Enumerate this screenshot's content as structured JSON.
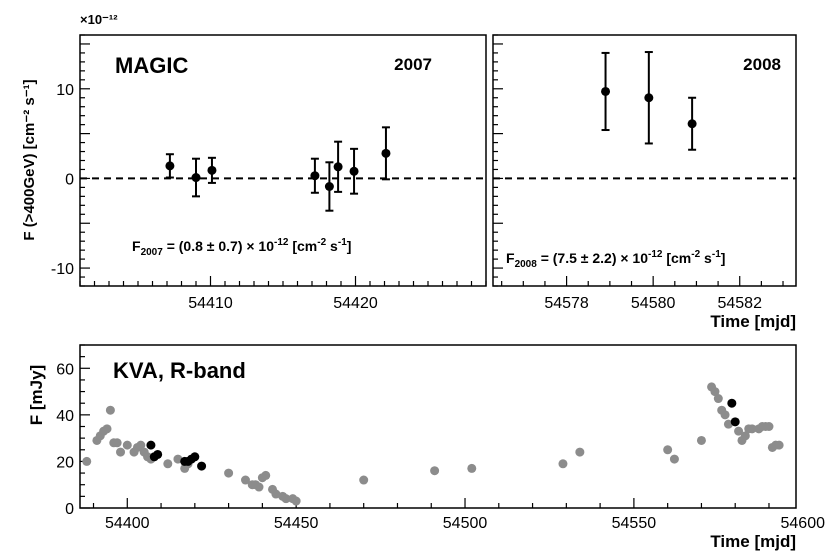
{
  "chart_data": [
    {
      "type": "scatter",
      "panel": "MAGIC 2007",
      "label": "MAGIC",
      "year": "2007",
      "ylabel": "F (>400GeV) [cm⁻² s⁻¹]",
      "y_multiplier": "×10⁻¹²",
      "xlim": [
        54401,
        54429
      ],
      "ylim": [
        -12,
        16
      ],
      "xticks": [
        54410,
        54420
      ],
      "yticks": [
        -10,
        0,
        10
      ],
      "reference_line": 0,
      "fit_prefix": "F",
      "fit_sub": "2007",
      "fit_text": " = (0.8 ± 0.7) × 10",
      "fit_exp": "-12",
      "fit_unit": " [cm",
      "fit_unit_exp1": "-2",
      "fit_unit_mid": " s",
      "fit_unit_exp2": "-1",
      "fit_end": "]",
      "points": [
        {
          "x": 54407.2,
          "y": 1.4,
          "err": 1.3
        },
        {
          "x": 54409.0,
          "y": 0.1,
          "err": 2.1
        },
        {
          "x": 54410.1,
          "y": 0.9,
          "err": 1.4
        },
        {
          "x": 54417.2,
          "y": 0.3,
          "err": 1.9
        },
        {
          "x": 54418.2,
          "y": -0.9,
          "err": 2.7
        },
        {
          "x": 54418.8,
          "y": 1.3,
          "err": 2.8
        },
        {
          "x": 54419.9,
          "y": 0.8,
          "err": 2.5
        },
        {
          "x": 54422.1,
          "y": 2.8,
          "err": 2.9
        }
      ]
    },
    {
      "type": "scatter",
      "panel": "MAGIC 2008",
      "year": "2008",
      "xlabel": "Time [mjd]",
      "xlim": [
        54576.3,
        54583.3
      ],
      "ylim": [
        -12,
        16
      ],
      "xticks": [
        54578,
        54580,
        54582
      ],
      "reference_line": 0,
      "fit_prefix": "F",
      "fit_sub": "2008",
      "fit_text": " = (7.5 ± 2.2) × 10",
      "fit_exp": "-12",
      "fit_unit": " [cm",
      "fit_unit_exp1": "-2",
      "fit_unit_mid": " s",
      "fit_unit_exp2": "-1",
      "fit_end": "]",
      "points": [
        {
          "x": 54578.9,
          "y": 9.7,
          "err": 4.3
        },
        {
          "x": 54579.9,
          "y": 9.0,
          "err": 5.1
        },
        {
          "x": 54580.9,
          "y": 6.1,
          "err": 2.9
        }
      ]
    },
    {
      "type": "scatter",
      "panel": "KVA R-band",
      "label": "KVA, R-band",
      "xlabel": "Time [mjd]",
      "ylabel": "F [mJy]",
      "xlim": [
        54386,
        54598
      ],
      "ylim": [
        0,
        70
      ],
      "xticks": [
        54400,
        54450,
        54500,
        54550,
        54600
      ],
      "yticks": [
        0,
        20,
        40,
        60
      ],
      "colors": {
        "gray": "#8c8c8c",
        "black": "#000000"
      },
      "series": [
        {
          "color": "gray",
          "points": [
            [
              54388,
              20
            ],
            [
              54391,
              29
            ],
            [
              54392,
              31
            ],
            [
              54393,
              33
            ],
            [
              54394,
              34
            ],
            [
              54395,
              42
            ],
            [
              54396,
              28
            ],
            [
              54397,
              28
            ],
            [
              54398,
              24
            ],
            [
              54400,
              27
            ],
            [
              54402,
              24
            ],
            [
              54403,
              26
            ],
            [
              54404,
              27
            ],
            [
              54405,
              24
            ],
            [
              54406,
              22
            ],
            [
              54407,
              21
            ],
            [
              54412,
              19
            ],
            [
              54415,
              21
            ],
            [
              54417,
              17
            ],
            [
              54418,
              19
            ],
            [
              54430,
              15
            ],
            [
              54435,
              12
            ],
            [
              54437,
              10
            ],
            [
              54438,
              10
            ],
            [
              54439,
              9
            ],
            [
              54440,
              13
            ],
            [
              54441,
              14
            ],
            [
              54443,
              8
            ],
            [
              54444,
              6
            ],
            [
              54446,
              5
            ],
            [
              54447,
              4
            ],
            [
              54449,
              4
            ],
            [
              54450,
              3
            ],
            [
              54470,
              12
            ],
            [
              54491,
              16
            ],
            [
              54502,
              17
            ],
            [
              54529,
              19
            ],
            [
              54534,
              24
            ],
            [
              54560,
              25
            ],
            [
              54562,
              21
            ],
            [
              54570,
              29
            ],
            [
              54573,
              52
            ],
            [
              54574,
              50
            ],
            [
              54575,
              47
            ],
            [
              54576,
              42
            ],
            [
              54577,
              40
            ],
            [
              54578,
              36
            ],
            [
              54581,
              33
            ],
            [
              54582,
              29
            ],
            [
              54583,
              31
            ],
            [
              54584,
              34
            ],
            [
              54585,
              34
            ],
            [
              54587,
              34
            ],
            [
              54588,
              35
            ],
            [
              54589,
              35
            ],
            [
              54590,
              35
            ],
            [
              54591,
              26
            ],
            [
              54592,
              27
            ],
            [
              54593,
              27
            ]
          ]
        },
        {
          "color": "black",
          "points": [
            [
              54407,
              27
            ],
            [
              54408,
              22
            ],
            [
              54409,
              23
            ],
            [
              54417,
              20
            ],
            [
              54418,
              20
            ],
            [
              54419,
              21
            ],
            [
              54420,
              22
            ],
            [
              54422,
              18
            ],
            [
              54579,
              45
            ],
            [
              54580,
              37
            ]
          ]
        }
      ]
    }
  ]
}
